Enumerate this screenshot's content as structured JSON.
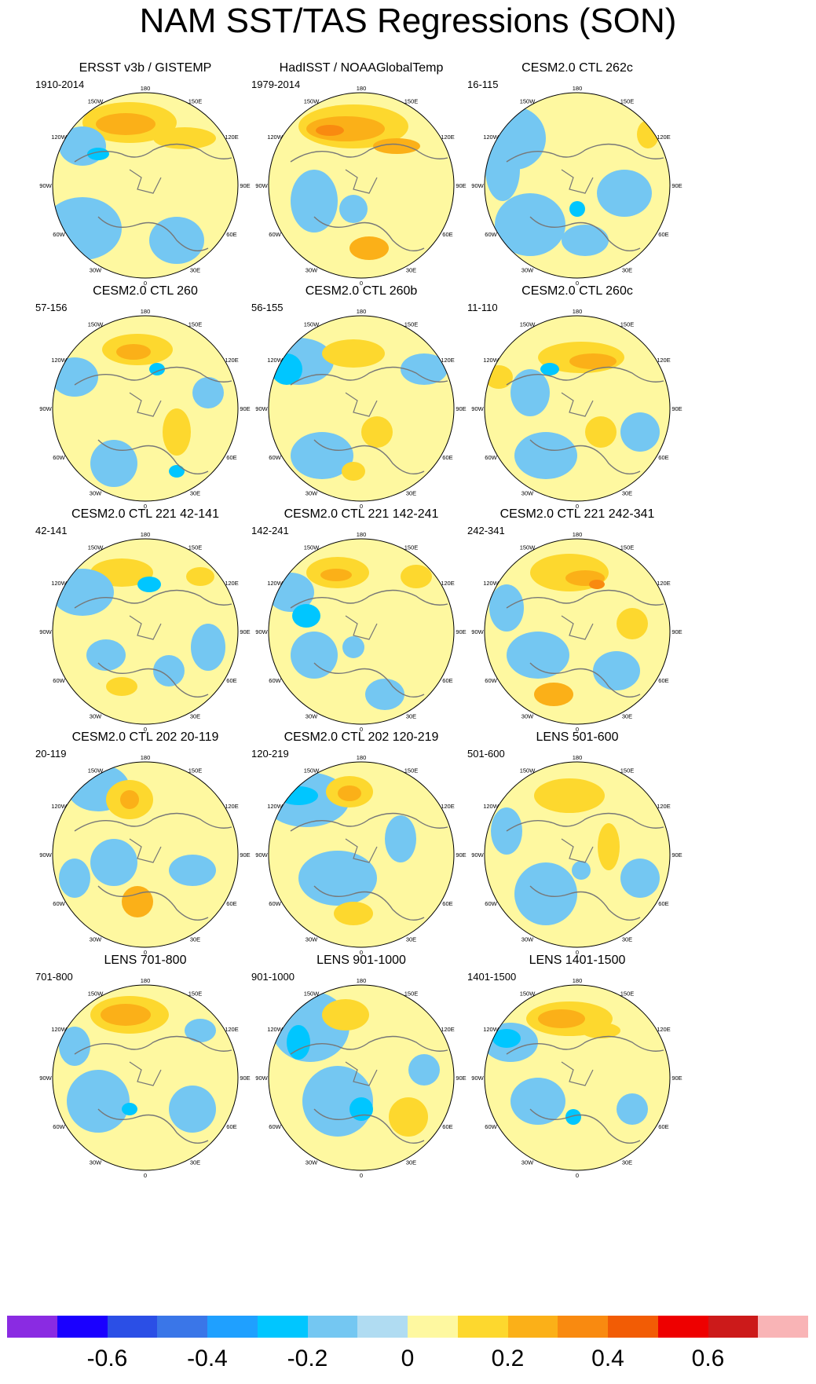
{
  "title": "NAM SST/TAS Regressions (SON)",
  "longitude_labels": [
    "180",
    "150E",
    "120E",
    "90E",
    "60E",
    "30E",
    "0",
    "30W",
    "60W",
    "90W",
    "120W",
    "150W"
  ],
  "panels": [
    {
      "title": "ERSST v3b / GISTEMP",
      "period": "1910-2014"
    },
    {
      "title": "HadISST / NOAAGlobalTemp",
      "period": "1979-2014"
    },
    {
      "title": "CESM2.0 CTL 262c",
      "period": "16-115"
    },
    {
      "title": "CESM2.0 CTL 260",
      "period": "57-156"
    },
    {
      "title": "CESM2.0 CTL 260b",
      "period": "56-155"
    },
    {
      "title": "CESM2.0 CTL 260c",
      "period": "11-110"
    },
    {
      "title": "CESM2.0 CTL 221 42-141",
      "period": "42-141"
    },
    {
      "title": "CESM2.0 CTL 221 142-241",
      "period": "142-241"
    },
    {
      "title": "CESM2.0 CTL 221 242-341",
      "period": "242-341"
    },
    {
      "title": "CESM2.0 CTL 202 20-119",
      "period": "20-119"
    },
    {
      "title": "CESM2.0 CTL 202 120-219",
      "period": "120-219"
    },
    {
      "title": "LENS 501-600",
      "period": "501-600"
    },
    {
      "title": "LENS 701-800",
      "period": "701-800"
    },
    {
      "title": "LENS 901-1000",
      "period": "901-1000"
    },
    {
      "title": "LENS 1401-1500",
      "period": "1401-1500"
    }
  ],
  "colorbar": {
    "colors": [
      "#8a2be2",
      "#1a00ff",
      "#2b4fe6",
      "#3a76e8",
      "#1fa0ff",
      "#00c6ff",
      "#74c7f2",
      "#b0dcf2",
      "#fef8a0",
      "#fdd82e",
      "#fbb018",
      "#f98a10",
      "#f25c05",
      "#ee0000",
      "#cc1a1a",
      "#f9b4b6"
    ],
    "tick_labels": [
      "-0.6",
      "-0.4",
      "-0.2",
      "0",
      "0.2",
      "0.4",
      "0.6"
    ]
  }
}
